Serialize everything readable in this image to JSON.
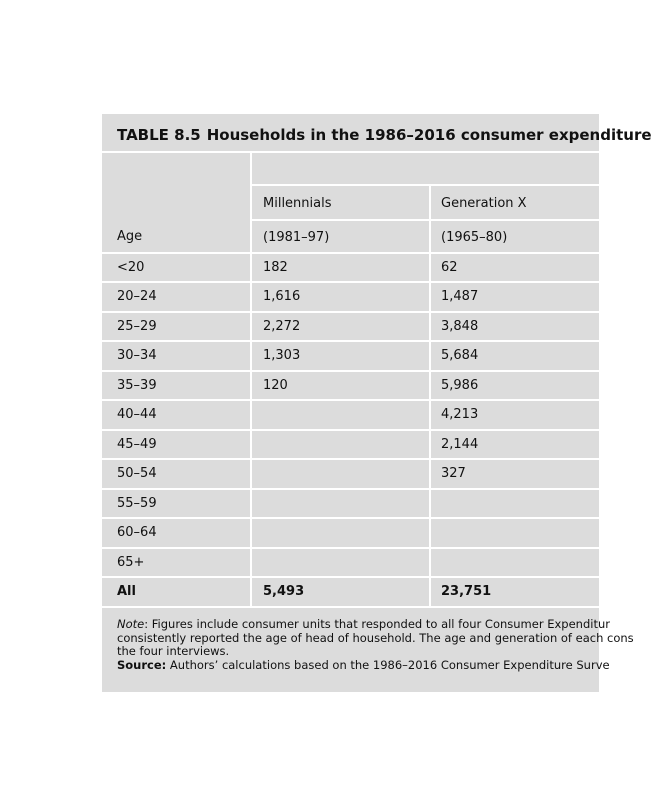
{
  "table": {
    "label": "TABLE 8.5",
    "title": "Households in the 1986–2016 consumer expenditure",
    "age_header": "Age",
    "columns": [
      {
        "name": "Millennials",
        "years": "(1981–97)"
      },
      {
        "name": "Generation X",
        "years": "(1965–80)"
      }
    ],
    "rows": [
      [
        "<20",
        "182",
        "62"
      ],
      [
        "20–24",
        "1,616",
        "1,487"
      ],
      [
        "25–29",
        "2,272",
        "3,848"
      ],
      [
        "30–34",
        "1,303",
        "5,684"
      ],
      [
        "35–39",
        "120",
        "5,986"
      ],
      [
        "40–44",
        null,
        "4,213"
      ],
      [
        "45–49",
        null,
        "2,144"
      ],
      [
        "50–54",
        null,
        "327"
      ],
      [
        "55–59",
        null,
        null
      ],
      [
        "60–64",
        null,
        null
      ],
      [
        "65+",
        null,
        null
      ]
    ],
    "total": [
      "All",
      "5,493",
      "23,751"
    ]
  },
  "notes": {
    "note_label": "Note",
    "note_lines": [
      ": Figures include consumer units that responded to all four Consumer Expenditur",
      "consistently reported the age of head of household. The age and generation of each cons",
      "the four interviews."
    ],
    "source_label": "Source:",
    "source_text": " Authors’ calculations based on the 1986–2016 Consumer Expenditure Surve"
  }
}
